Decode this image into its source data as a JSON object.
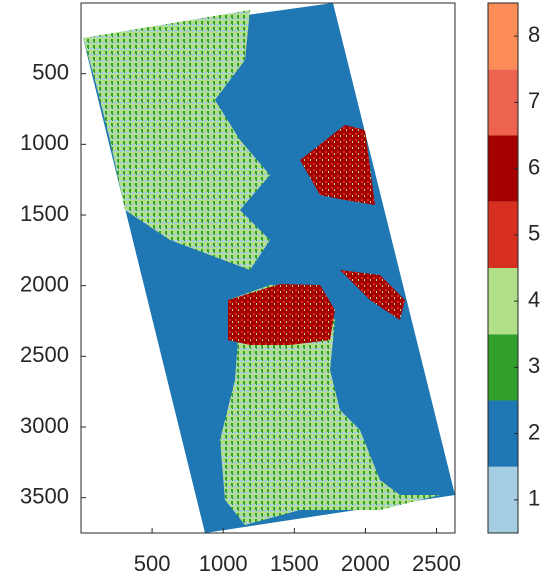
{
  "chart_data": {
    "type": "image",
    "xlim": [
      0,
      2630
    ],
    "ylim": [
      0,
      3750
    ],
    "y_reversed": true,
    "xticks": [
      500,
      1000,
      1500,
      2000,
      2500
    ],
    "yticks": [
      500,
      1000,
      1500,
      2000,
      2500,
      3000,
      3500
    ],
    "colorbar": {
      "clim": [
        0.5,
        8.5
      ],
      "ticks": [
        1,
        2,
        3,
        4,
        5,
        6,
        7,
        8
      ],
      "colors": [
        "#a6cee3",
        "#1f78b4",
        "#33a02c",
        "#b2df8a",
        "#d7301f",
        "#a50000",
        "#ec6350",
        "#fc8d59"
      ]
    }
  }
}
